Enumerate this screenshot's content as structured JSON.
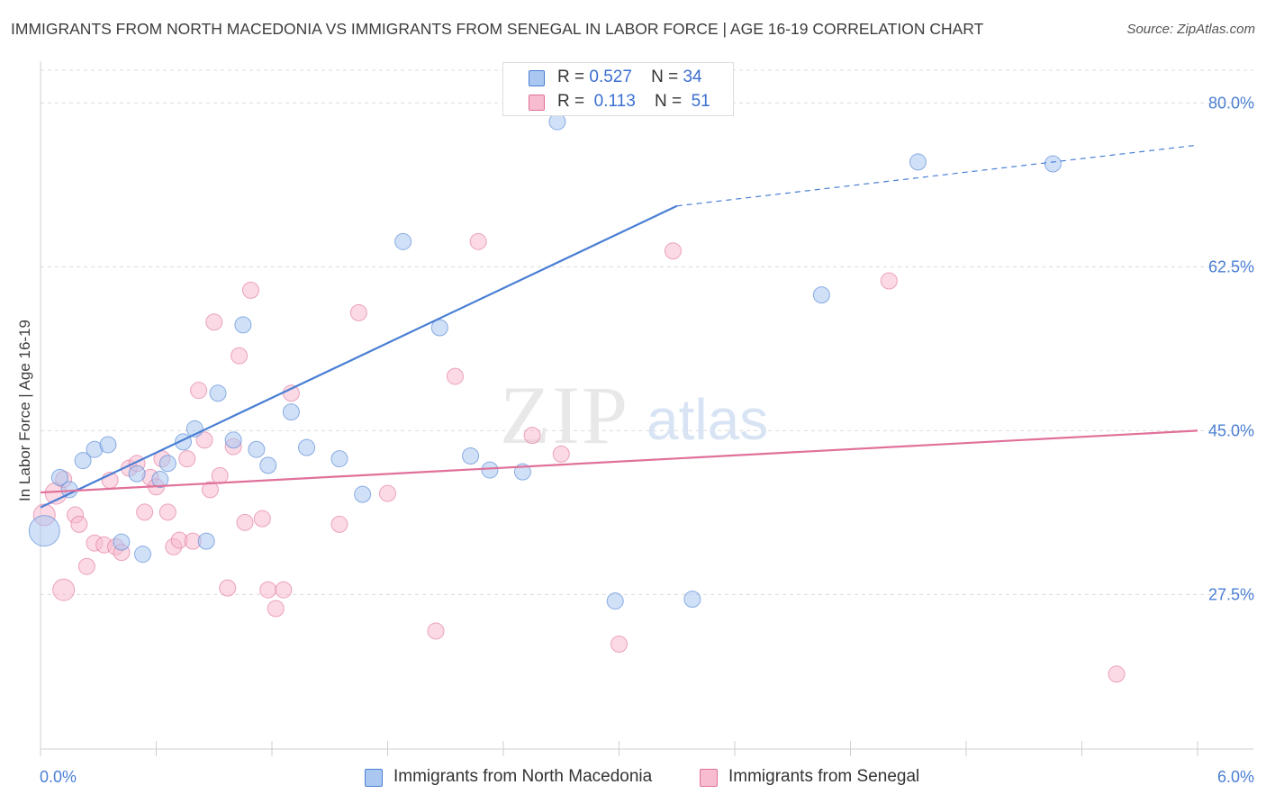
{
  "chart_data": {
    "type": "scatter",
    "title": "IMMIGRANTS FROM NORTH MACEDONIA VS IMMIGRANTS FROM SENEGAL IN LABOR FORCE | AGE 16-19 CORRELATION CHART",
    "source": "Source: ZipAtlas.com",
    "xlabel": "",
    "ylabel": "In Labor Force | Age 16-19",
    "x_tick_labels": [
      "0.0%",
      "6.0%"
    ],
    "y_tick_labels": [
      "80.0%",
      "62.5%",
      "45.0%",
      "27.5%"
    ],
    "y_ticks": [
      80.0,
      62.5,
      45.0,
      27.5
    ],
    "xlim": [
      0.0,
      6.0
    ],
    "ylim": [
      11.0,
      83.5
    ],
    "grid": true,
    "watermark": {
      "zip": "ZIP",
      "atlas": "atlas"
    },
    "legend_r_label": "R =",
    "legend_n_label": "N =",
    "series": [
      {
        "name": "Immigrants from North Macedonia",
        "color": "#4a7fd4",
        "fill": "#a9c7f0",
        "r_value": "0.527",
        "n_value": "34",
        "trend": {
          "x0": 0.0,
          "y0": 36.8,
          "x1": 3.3,
          "y1": 69.0,
          "x_dash_end": 6.0,
          "y_dash_end": 75.5
        },
        "points": [
          {
            "x": 0.02,
            "y": 34.3,
            "size": "large"
          },
          {
            "x": 0.1,
            "y": 40.0
          },
          {
            "x": 0.15,
            "y": 38.7
          },
          {
            "x": 0.22,
            "y": 41.8
          },
          {
            "x": 0.28,
            "y": 43.0
          },
          {
            "x": 0.35,
            "y": 43.5
          },
          {
            "x": 0.42,
            "y": 33.1
          },
          {
            "x": 0.5,
            "y": 40.4
          },
          {
            "x": 0.53,
            "y": 31.8
          },
          {
            "x": 0.62,
            "y": 39.8
          },
          {
            "x": 0.66,
            "y": 41.5
          },
          {
            "x": 0.74,
            "y": 43.8
          },
          {
            "x": 0.8,
            "y": 45.2
          },
          {
            "x": 0.86,
            "y": 33.2
          },
          {
            "x": 0.92,
            "y": 49.0
          },
          {
            "x": 1.0,
            "y": 44.0
          },
          {
            "x": 1.05,
            "y": 56.3
          },
          {
            "x": 1.12,
            "y": 43.0
          },
          {
            "x": 1.18,
            "y": 41.3
          },
          {
            "x": 1.3,
            "y": 47.0
          },
          {
            "x": 1.38,
            "y": 43.2
          },
          {
            "x": 1.55,
            "y": 42.0
          },
          {
            "x": 1.67,
            "y": 38.2
          },
          {
            "x": 1.88,
            "y": 65.2
          },
          {
            "x": 2.07,
            "y": 56.0
          },
          {
            "x": 2.23,
            "y": 42.3
          },
          {
            "x": 2.33,
            "y": 40.8
          },
          {
            "x": 2.5,
            "y": 40.6
          },
          {
            "x": 2.68,
            "y": 78.0
          },
          {
            "x": 2.98,
            "y": 26.8
          },
          {
            "x": 3.38,
            "y": 27.0
          },
          {
            "x": 4.05,
            "y": 59.5
          },
          {
            "x": 4.55,
            "y": 73.7
          },
          {
            "x": 5.25,
            "y": 73.5
          }
        ]
      },
      {
        "name": "Immigrants from Senegal",
        "color": "#e0709a",
        "fill": "#f7bccf",
        "r_value": "0.113",
        "n_value": "51",
        "trend": {
          "x0": 0.0,
          "y0": 38.4,
          "x1": 6.0,
          "y1": 45.0
        },
        "points": [
          {
            "x": 0.02,
            "y": 36.0,
            "size": "large"
          },
          {
            "x": 0.08,
            "y": 38.3,
            "size": "large"
          },
          {
            "x": 0.12,
            "y": 28.0,
            "size": "large"
          },
          {
            "x": 0.12,
            "y": 39.8
          },
          {
            "x": 0.18,
            "y": 36.0
          },
          {
            "x": 0.2,
            "y": 35.0
          },
          {
            "x": 0.24,
            "y": 30.5
          },
          {
            "x": 0.28,
            "y": 33.0
          },
          {
            "x": 0.33,
            "y": 32.8
          },
          {
            "x": 0.36,
            "y": 39.7
          },
          {
            "x": 0.39,
            "y": 32.6
          },
          {
            "x": 0.42,
            "y": 32.0
          },
          {
            "x": 0.46,
            "y": 41.0
          },
          {
            "x": 0.5,
            "y": 41.5
          },
          {
            "x": 0.54,
            "y": 36.3
          },
          {
            "x": 0.57,
            "y": 40.0
          },
          {
            "x": 0.6,
            "y": 39.0
          },
          {
            "x": 0.63,
            "y": 42.0
          },
          {
            "x": 0.66,
            "y": 36.3
          },
          {
            "x": 0.69,
            "y": 32.6
          },
          {
            "x": 0.72,
            "y": 33.3
          },
          {
            "x": 0.76,
            "y": 42.0
          },
          {
            "x": 0.79,
            "y": 33.2
          },
          {
            "x": 0.82,
            "y": 49.3
          },
          {
            "x": 0.85,
            "y": 44.0
          },
          {
            "x": 0.88,
            "y": 38.7
          },
          {
            "x": 0.9,
            "y": 56.6
          },
          {
            "x": 0.93,
            "y": 40.2
          },
          {
            "x": 0.97,
            "y": 28.2
          },
          {
            "x": 1.0,
            "y": 43.3
          },
          {
            "x": 1.03,
            "y": 53.0
          },
          {
            "x": 1.06,
            "y": 35.2
          },
          {
            "x": 1.09,
            "y": 60.0
          },
          {
            "x": 1.15,
            "y": 35.6
          },
          {
            "x": 1.18,
            "y": 28.0
          },
          {
            "x": 1.22,
            "y": 26.0
          },
          {
            "x": 1.26,
            "y": 28.0
          },
          {
            "x": 1.3,
            "y": 49.0
          },
          {
            "x": 1.55,
            "y": 35.0
          },
          {
            "x": 1.65,
            "y": 57.6
          },
          {
            "x": 1.8,
            "y": 38.3
          },
          {
            "x": 2.05,
            "y": 23.6
          },
          {
            "x": 2.15,
            "y": 50.8
          },
          {
            "x": 2.27,
            "y": 65.2
          },
          {
            "x": 2.55,
            "y": 44.5
          },
          {
            "x": 2.7,
            "y": 42.5
          },
          {
            "x": 3.0,
            "y": 22.2
          },
          {
            "x": 3.28,
            "y": 64.2
          },
          {
            "x": 4.4,
            "y": 61.0
          },
          {
            "x": 5.58,
            "y": 19.0
          },
          {
            "x": 6.0,
            "y": 45.0,
            "hidden": true
          }
        ]
      }
    ]
  }
}
